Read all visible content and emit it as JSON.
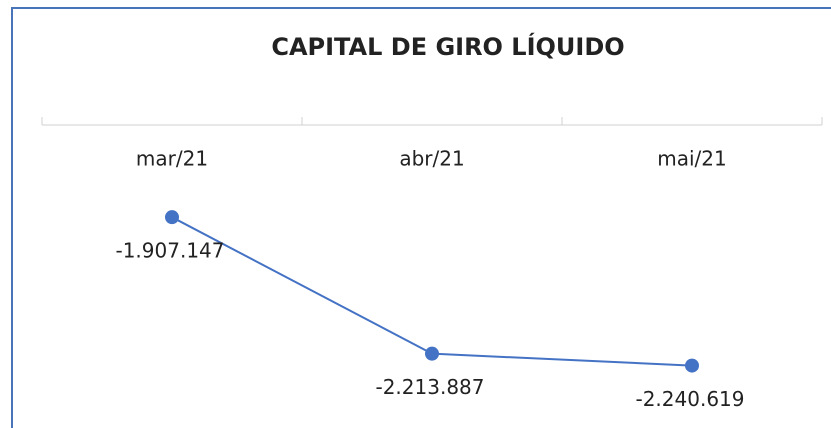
{
  "chart_data": {
    "type": "line",
    "title": "CAPITAL DE GIRO LÍQUIDO",
    "categories": [
      "mar/21",
      "abr/21",
      "mai/21"
    ],
    "series": [
      {
        "name": "Capital de giro líquido",
        "color": "#4472c4",
        "values": [
          -1907147,
          -2213887,
          -2240619
        ],
        "value_labels": [
          "-1.907.147",
          "-2.213.887",
          "-2.240.619"
        ]
      }
    ],
    "ylim": [
      -2300000,
      -1700000
    ]
  }
}
